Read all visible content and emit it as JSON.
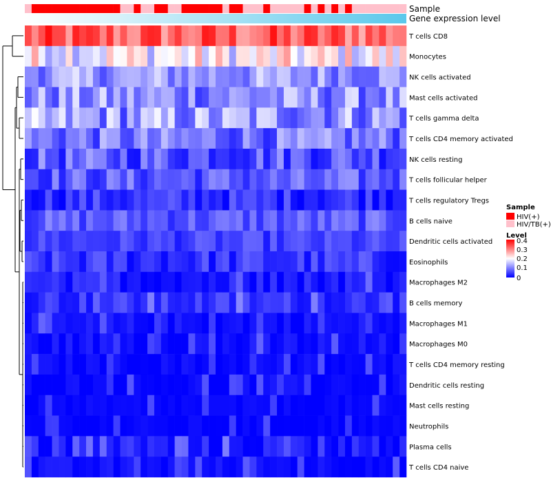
{
  "chart_data": {
    "type": "heatmap",
    "annotation_tracks": [
      {
        "name": "Sample",
        "values": [
          "HIV/TB(+)",
          "HIV(+)",
          "HIV(+)",
          "HIV(+)",
          "HIV(+)",
          "HIV(+)",
          "HIV(+)",
          "HIV(+)",
          "HIV(+)",
          "HIV(+)",
          "HIV(+)",
          "HIV(+)",
          "HIV(+)",
          "HIV(+)",
          "HIV/TB(+)",
          "HIV/TB(+)",
          "HIV(+)",
          "HIV/TB(+)",
          "HIV/TB(+)",
          "HIV(+)",
          "HIV(+)",
          "HIV/TB(+)",
          "HIV/TB(+)",
          "HIV(+)",
          "HIV(+)",
          "HIV(+)",
          "HIV(+)",
          "HIV(+)",
          "HIV(+)",
          "HIV/TB(+)",
          "HIV(+)",
          "HIV(+)",
          "HIV/TB(+)",
          "HIV/TB(+)",
          "HIV/TB(+)",
          "HIV(+)",
          "HIV/TB(+)",
          "HIV/TB(+)",
          "HIV/TB(+)",
          "HIV/TB(+)",
          "HIV/TB(+)",
          "HIV(+)",
          "HIV/TB(+)",
          "HIV(+)",
          "HIV/TB(+)",
          "HIV(+)",
          "HIV/TB(+)",
          "HIV(+)",
          "HIV/TB(+)",
          "HIV/TB(+)",
          "HIV/TB(+)",
          "HIV/TB(+)",
          "HIV/TB(+)",
          "HIV/TB(+)",
          "HIV/TB(+)",
          "HIV/TB(+)"
        ]
      },
      {
        "name": "Gene expression level",
        "gradient": [
          "#ffffff",
          "#5ac8eb"
        ]
      }
    ],
    "rows": [
      "T cells CD8",
      "Monocytes",
      "NK cells activated",
      "Mast cells activated",
      "T cells gamma delta",
      "T cells CD4 memory activated",
      "NK cells resting",
      "T cells follicular helper",
      "T cells regulatory  Tregs",
      "B cells naive",
      "Dendritic cells activated",
      "Eosinophils",
      "Macrophages M2",
      "B cells memory",
      "Macrophages M1",
      "Macrophages M0",
      "T cells CD4 memory resting",
      "Dendritic cells resting",
      "Mast cells resting",
      "Neutrophils",
      "Plasma cells",
      "T cells CD4 naive"
    ],
    "row_base_levels": [
      0.32,
      0.2,
      0.12,
      0.11,
      0.12,
      0.09,
      0.07,
      0.07,
      0.04,
      0.07,
      0.05,
      0.04,
      0.02,
      0.04,
      0.01,
      0.01,
      0.005,
      0.005,
      0.003,
      0.002,
      0.02,
      0.01
    ],
    "row_variation": [
      0.07,
      0.08,
      0.06,
      0.07,
      0.08,
      0.06,
      0.06,
      0.05,
      0.04,
      0.04,
      0.03,
      0.04,
      0.03,
      0.03,
      0.02,
      0.02,
      0.015,
      0.015,
      0.01,
      0.01,
      0.03,
      0.015
    ],
    "n_columns": 56,
    "color_scale": {
      "min": 0,
      "max": 0.4,
      "colors": [
        "#0000ff",
        "#ffffff",
        "#ff0000"
      ]
    },
    "legend": {
      "sample": {
        "title": "Sample",
        "items": [
          {
            "label": "HIV(+)",
            "color": "#ff0000"
          },
          {
            "label": "HIV/TB(+)",
            "color": "#ffc0cb"
          }
        ]
      },
      "level": {
        "title": "Level",
        "ticks": [
          "0.4",
          "0.3",
          "0.2",
          "0.1",
          "0"
        ]
      }
    },
    "dendrogram": "row clustering dendrogram on left",
    "placement": {
      "legend": "right"
    }
  }
}
